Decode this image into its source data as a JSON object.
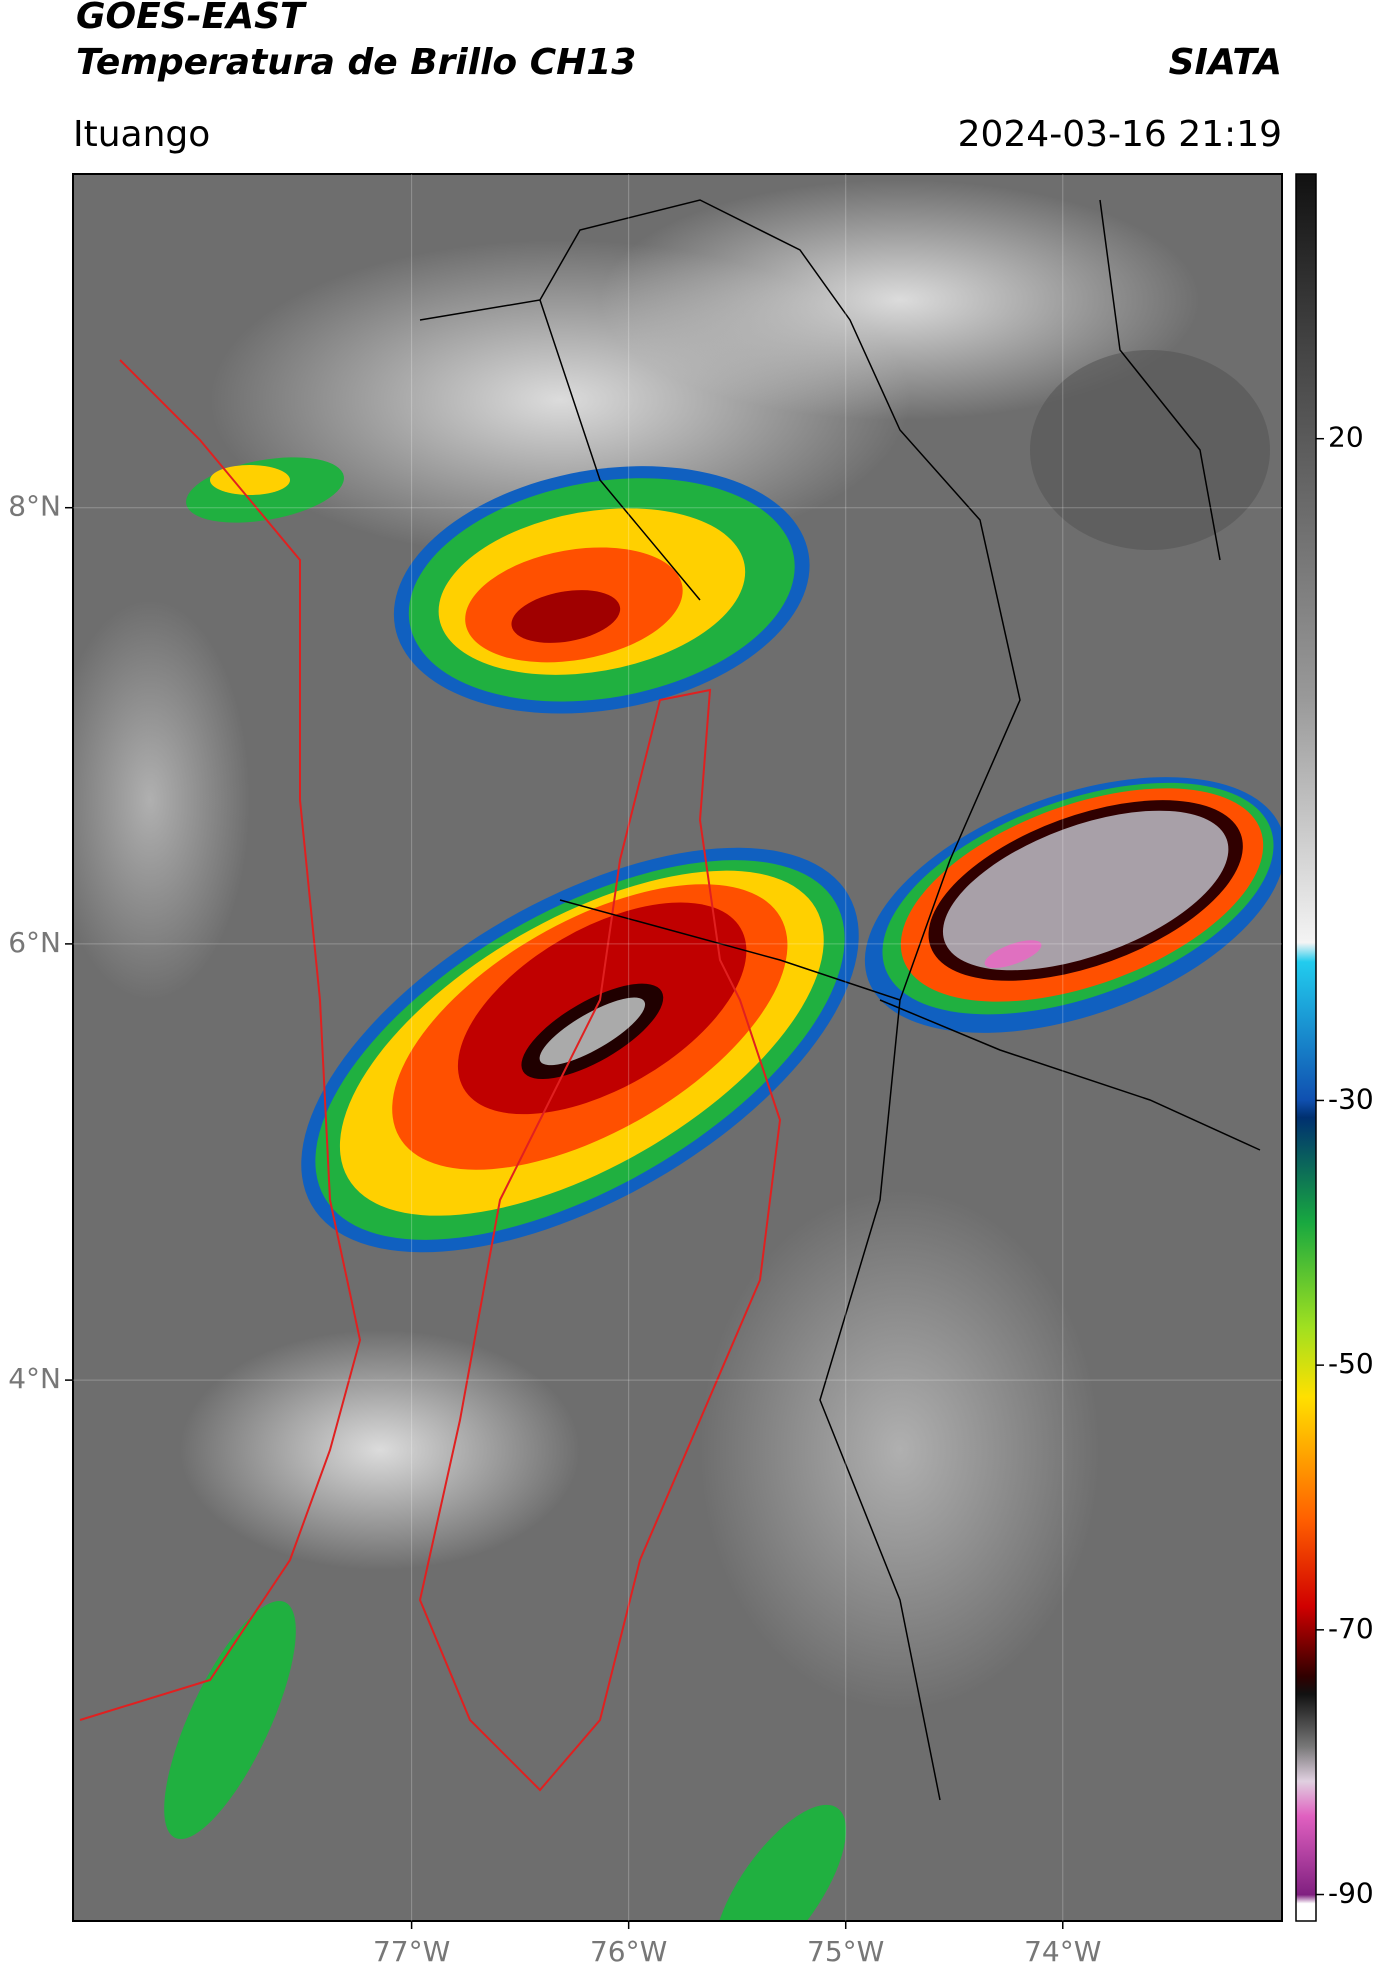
{
  "header": {
    "satellite": "GOES-EAST",
    "product": "Temperatura de Brillo CH13",
    "agency": "SIATA",
    "location": "Ituango",
    "datetime": "2024-03-16 21:19"
  },
  "map": {
    "xlim": [
      -78.56,
      -72.99
    ],
    "ylim": [
      1.52,
      9.53
    ],
    "yticks": [
      {
        "value": 8,
        "label": "8°N"
      },
      {
        "value": 6,
        "label": "6°N"
      },
      {
        "value": 4,
        "label": "4°N"
      }
    ],
    "xticks": [
      {
        "value": -77,
        "label": "77°W"
      },
      {
        "value": -76,
        "label": "76°W"
      },
      {
        "value": -75,
        "label": "75°W"
      },
      {
        "value": -74,
        "label": "74°W"
      }
    ]
  },
  "colorbar": {
    "lim": [
      -92,
      40
    ],
    "ticks": [
      20,
      -30,
      -50,
      -70,
      -90
    ]
  }
}
